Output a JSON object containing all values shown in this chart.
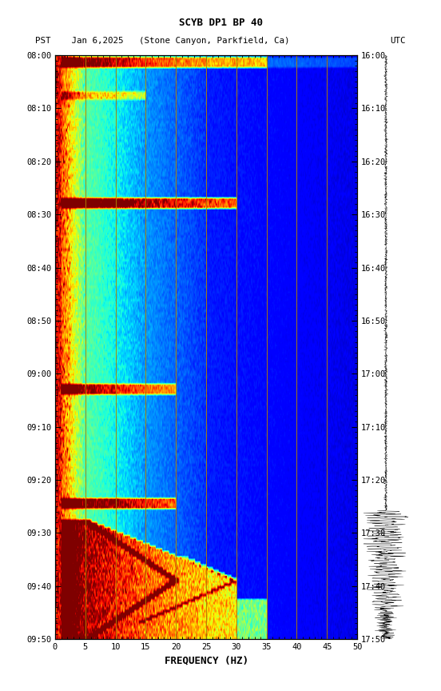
{
  "title_line1": "SCYB DP1 BP 40",
  "title_line2": "PST    Jan 6,2025   (Stone Canyon, Parkfield, Ca)             UTC",
  "xlabel": "FREQUENCY (HZ)",
  "freq_min": 0,
  "freq_max": 50,
  "pst_yticks": [
    "08:00",
    "08:10",
    "08:20",
    "08:30",
    "08:40",
    "08:50",
    "09:00",
    "09:10",
    "09:20",
    "09:30",
    "09:40",
    "09:50"
  ],
  "utc_yticks": [
    "16:00",
    "16:10",
    "16:20",
    "16:30",
    "16:40",
    "16:50",
    "17:00",
    "17:10",
    "17:20",
    "17:30",
    "17:40",
    "17:50"
  ],
  "freq_ticks": [
    0,
    5,
    10,
    15,
    20,
    25,
    30,
    35,
    40,
    45,
    50
  ],
  "vertical_lines_freq": [
    5,
    10,
    15,
    20,
    25,
    30,
    35,
    40,
    45
  ],
  "vertical_line_color": "#b08000",
  "background_color": "#ffffff",
  "colormap": "jet",
  "n_time": 220,
  "n_freq": 500,
  "seed": 42
}
